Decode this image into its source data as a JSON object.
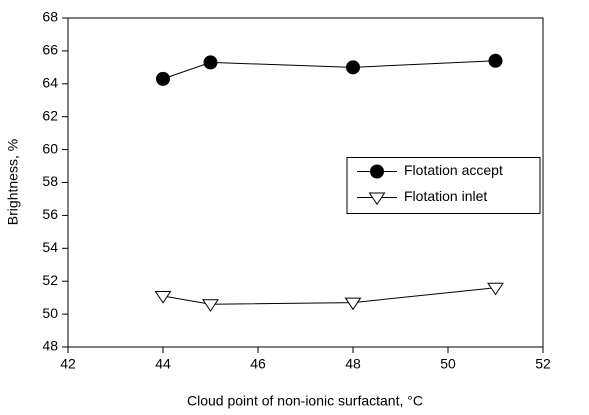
{
  "chart_data": {
    "type": "line",
    "xlabel": "Cloud point of non-ionic surfactant, °C",
    "ylabel": "Brightness, %",
    "xlim": [
      42,
      52
    ],
    "xticks": [
      42,
      44,
      46,
      48,
      50,
      52
    ],
    "ylim": [
      48,
      68
    ],
    "yticks": [
      48,
      50,
      52,
      54,
      56,
      58,
      60,
      62,
      64,
      66,
      68
    ],
    "legend": "center right",
    "series": [
      {
        "name": "Flotation accept",
        "color": "#000000",
        "marker": "circle",
        "x": [
          44,
          45,
          48,
          51
        ],
        "values": [
          64.3,
          65.3,
          65.0,
          65.4
        ]
      },
      {
        "name": "Flotation inlet",
        "color": "#000000",
        "marker": "triangle-down",
        "x": [
          44,
          45,
          48,
          51
        ],
        "values": [
          51.1,
          50.6,
          50.7,
          51.6
        ]
      }
    ]
  }
}
